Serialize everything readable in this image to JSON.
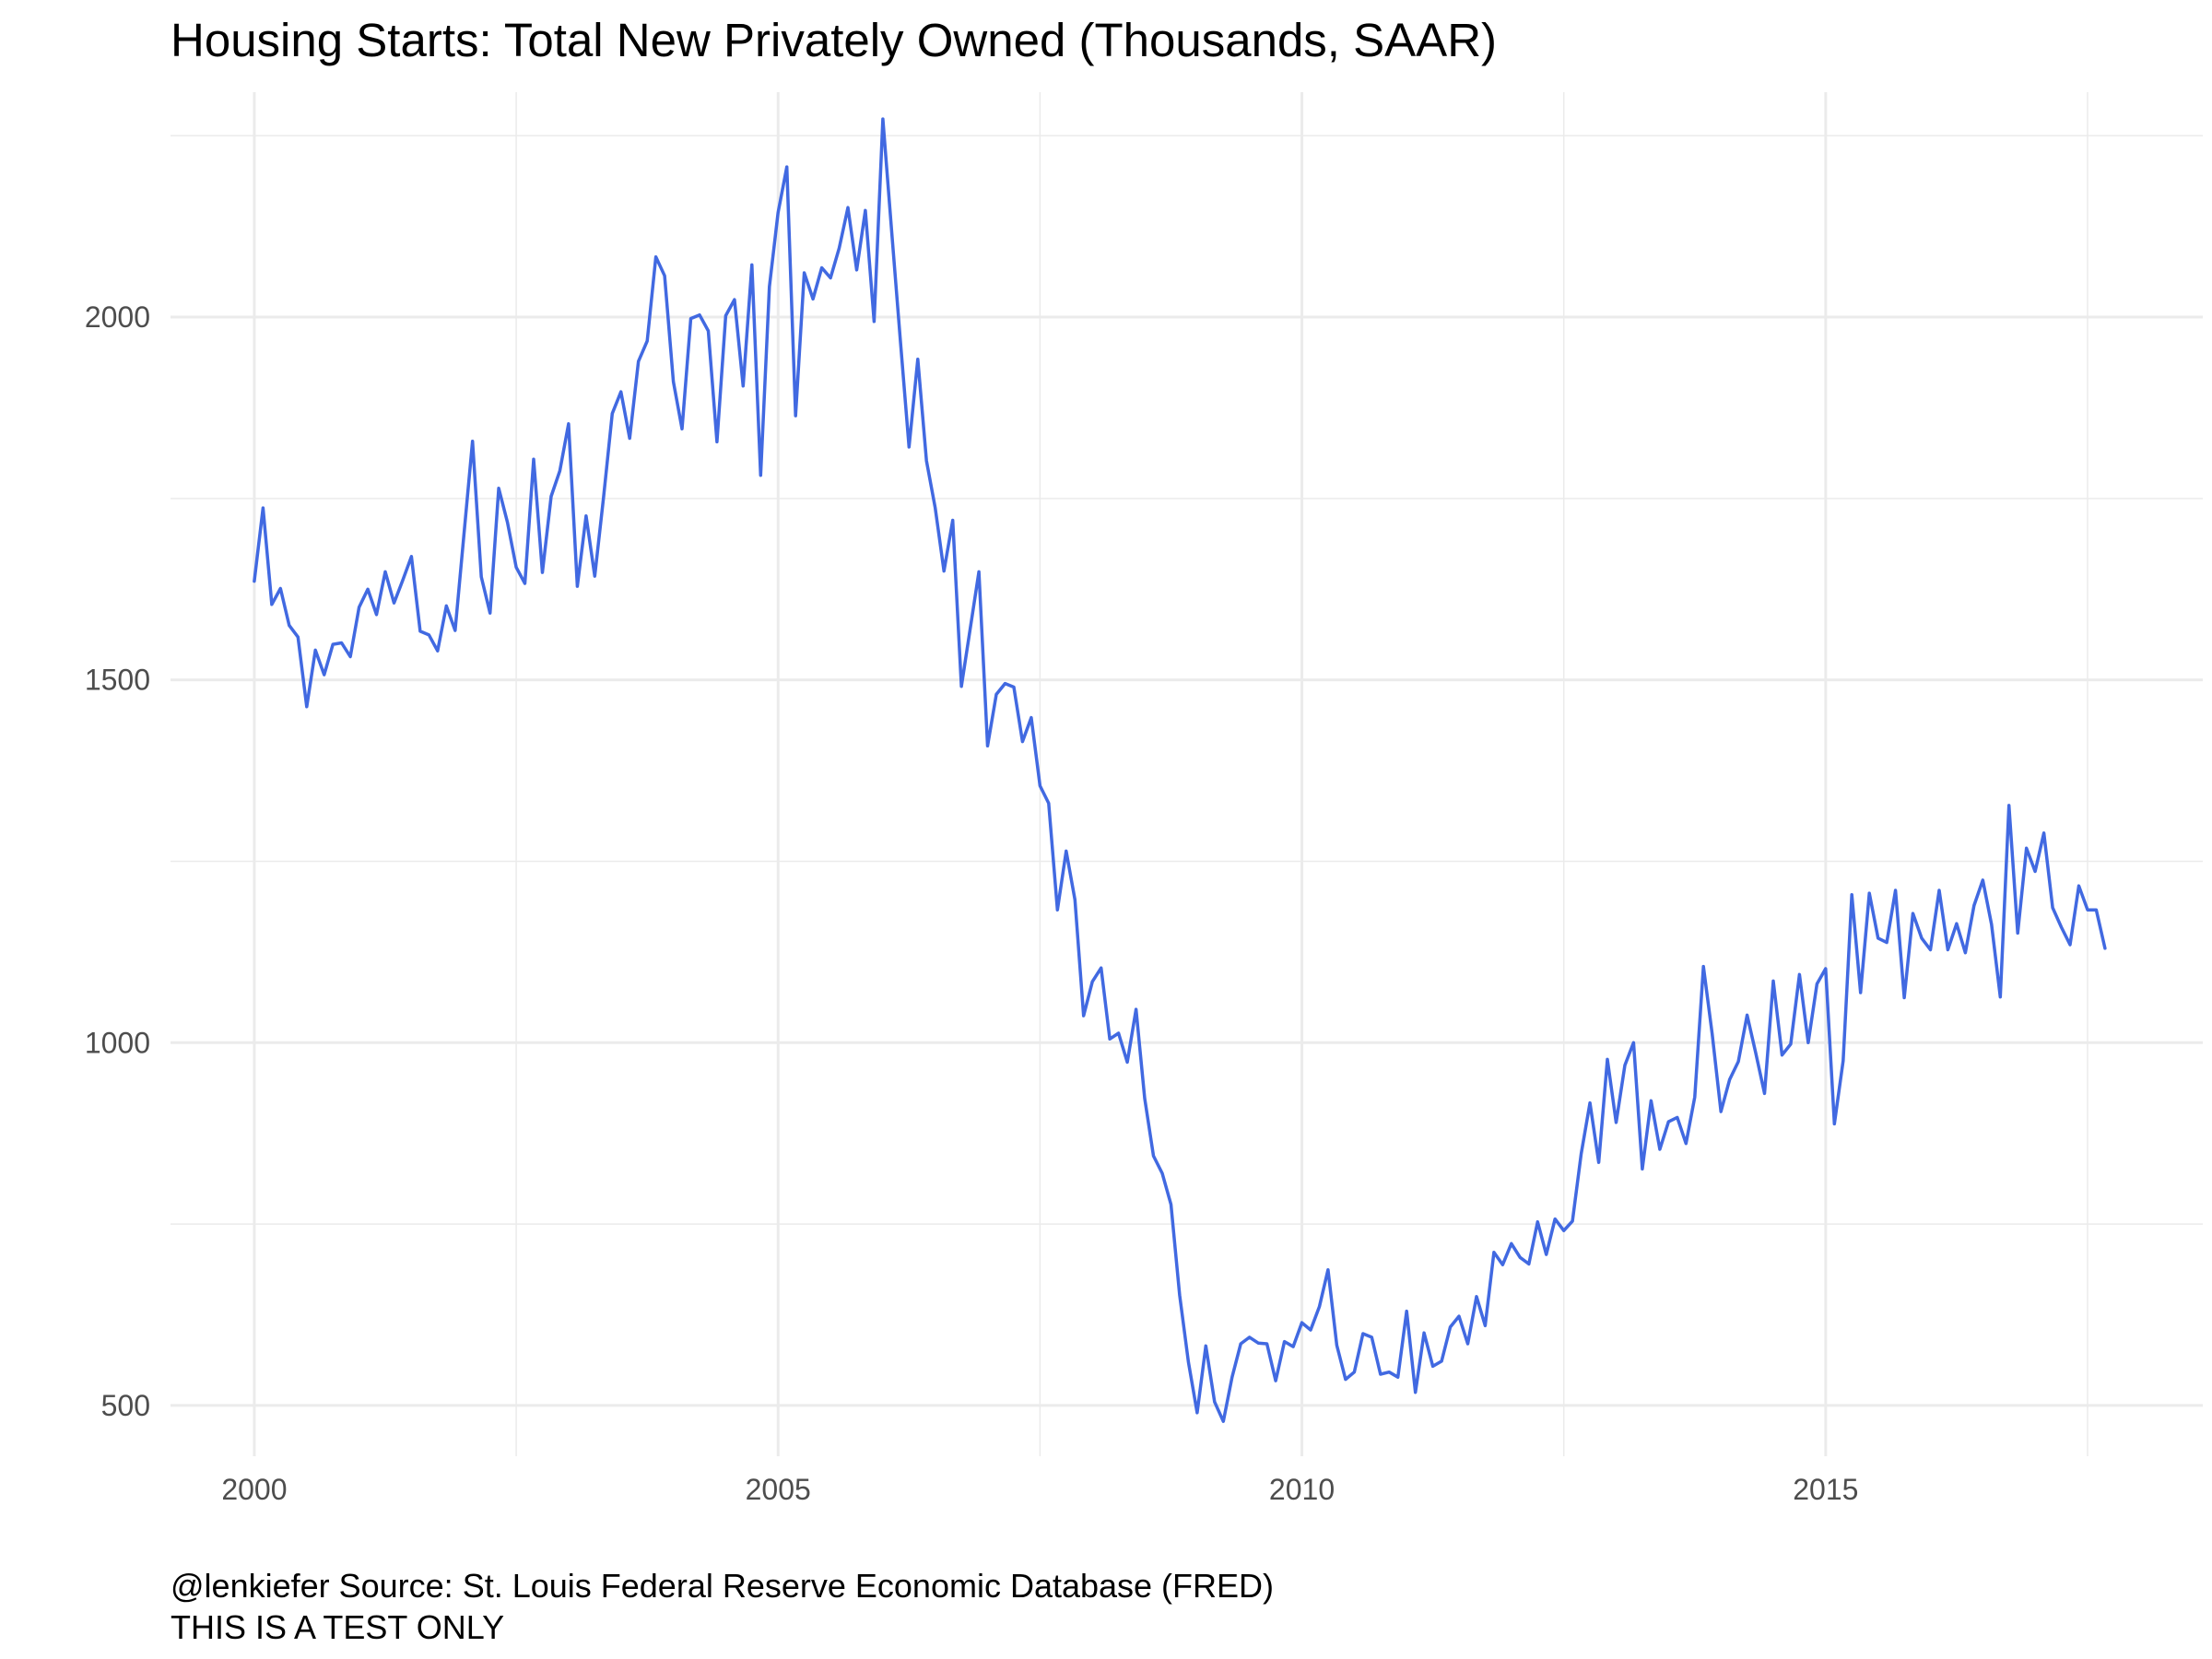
{
  "chart_data": {
    "type": "line",
    "title": "Housing Starts: Total New Privately Owned (Thousands, SAAR)",
    "xlabel": "",
    "ylabel": "",
    "caption": [
      "@lenkiefer Source: St. Louis Federal Reserve Economic Database (FRED)",
      "THIS IS A TEST ONLY"
    ],
    "x_ticks": [
      2000,
      2005,
      2010,
      2015
    ],
    "y_ticks": [
      500,
      1000,
      1500,
      2000
    ],
    "xlim": [
      1999.2,
      2018.6
    ],
    "ylim": [
      430,
      2310
    ],
    "grid": true,
    "legend": "none",
    "line_color": "#4169E1",
    "grid_color": "#EBEBEB",
    "series": [
      {
        "start": "2000-01",
        "frequency": "monthly",
        "values": [
          1636,
          1737,
          1604,
          1626,
          1575,
          1559,
          1463,
          1541,
          1507,
          1549,
          1551,
          1532,
          1600,
          1625,
          1590,
          1649,
          1606,
          1637,
          1670,
          1567,
          1562,
          1540,
          1602,
          1568,
          1698,
          1829,
          1642,
          1592,
          1764,
          1717,
          1655,
          1633,
          1804,
          1648,
          1753,
          1788,
          1853,
          1629,
          1726,
          1643,
          1751,
          1867,
          1897,
          1833,
          1939,
          1967,
          2083,
          2057,
          1911,
          1846,
          1998,
          2003,
          1981,
          1828,
          2002,
          2024,
          1905,
          2072,
          1782,
          2042,
          2144,
          2207,
          1864,
          2061,
          2025,
          2068,
          2054,
          2095,
          2151,
          2065,
          2147,
          1994,
          2273,
          2119,
          1969,
          1821,
          1942,
          1802,
          1737,
          1650,
          1720,
          1491,
          1570,
          1649,
          1409,
          1480,
          1495,
          1490,
          1415,
          1448,
          1354,
          1330,
          1183,
          1264,
          1197,
          1037,
          1084,
          1103,
          1005,
          1013,
          973,
          1046,
          923,
          844,
          820,
          777,
          652,
          560,
          490,
          582,
          505,
          478,
          539,
          585,
          594,
          586,
          585,
          534,
          588,
          581,
          614,
          604,
          636,
          687,
          583,
          536,
          546,
          599,
          594,
          543,
          546,
          539,
          630,
          518,
          600,
          554,
          561,
          608,
          623,
          585,
          650,
          610,
          711,
          694,
          723,
          704,
          695,
          753,
          708,
          757,
          741,
          754,
          847,
          917,
          835,
          977,
          890,
          969,
          1000,
          826,
          920,
          853,
          891,
          897,
          861,
          925,
          1105,
          1012,
          905,
          949,
          974,
          1038,
          985,
          930,
          1085,
          983,
          998,
          1094,
          1000,
          1081,
          1102,
          888,
          975,
          1204,
          1069,
          1206,
          1144,
          1138,
          1210,
          1062,
          1178,
          1144,
          1128,
          1210,
          1128,
          1164,
          1124,
          1189,
          1224,
          1163,
          1063,
          1327,
          1151,
          1268,
          1236,
          1289,
          1186,
          1159,
          1135,
          1216,
          1183,
          1183,
          1130
        ]
      }
    ]
  }
}
